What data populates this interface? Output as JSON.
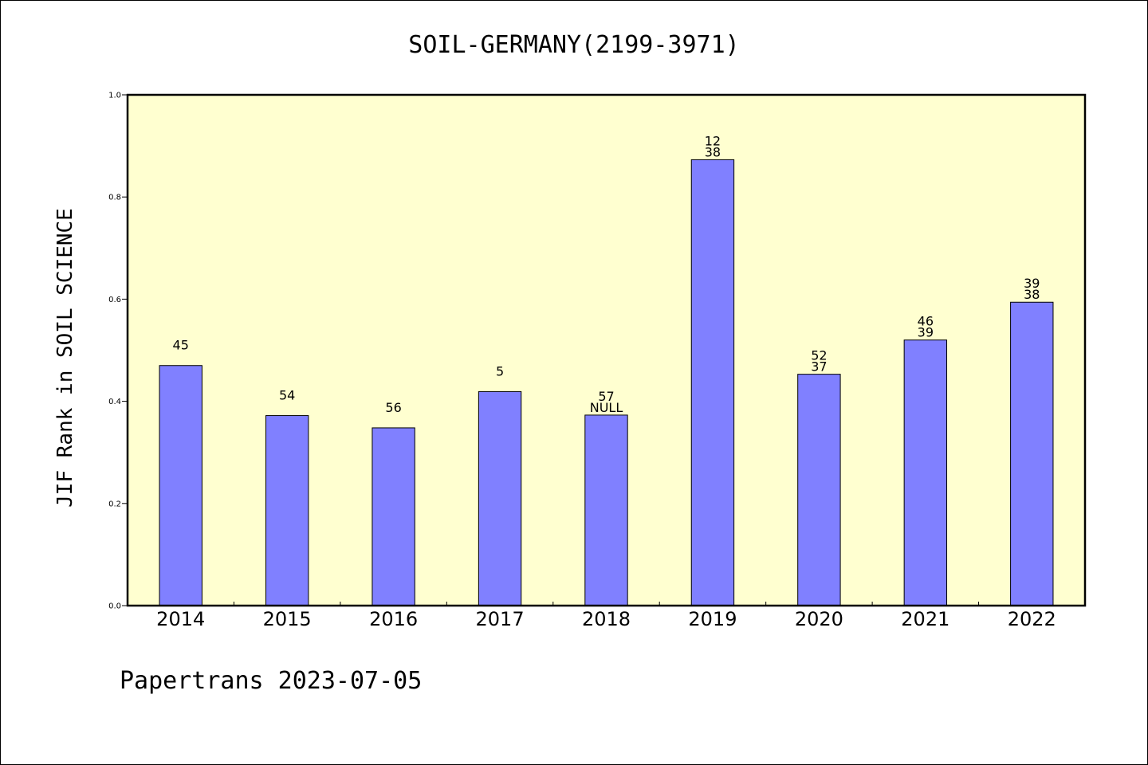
{
  "chart_data": {
    "type": "bar",
    "title": "SOIL-GERMANY(2199-3971)",
    "ylabel": "JIF Rank in SOIL SCIENCE",
    "xlabel": "",
    "ylim": [
      0.0,
      1.0
    ],
    "yticks": [
      "0.0",
      "0.2",
      "0.4",
      "0.6",
      "0.8",
      "1.0"
    ],
    "categories": [
      "2014",
      "2015",
      "2016",
      "2017",
      "2018",
      "2019",
      "2020",
      "2021",
      "2022"
    ],
    "values": [
      0.47,
      0.372,
      0.348,
      0.419,
      0.373,
      0.873,
      0.453,
      0.52,
      0.594
    ],
    "labels": [
      [
        "45"
      ],
      [
        "54"
      ],
      [
        "56"
      ],
      [
        "5"
      ],
      [
        "57",
        "NULL"
      ],
      [
        "12",
        "38"
      ],
      [
        "52",
        "37"
      ],
      [
        "46",
        "39"
      ],
      [
        "39",
        "38"
      ]
    ],
    "colors": {
      "plot_background": "#ffffd0",
      "bar_fill": "#8080ff",
      "bar_stroke": "#000000"
    },
    "grid": false,
    "legend": "none"
  },
  "footer": "Papertrans 2023-07-05"
}
